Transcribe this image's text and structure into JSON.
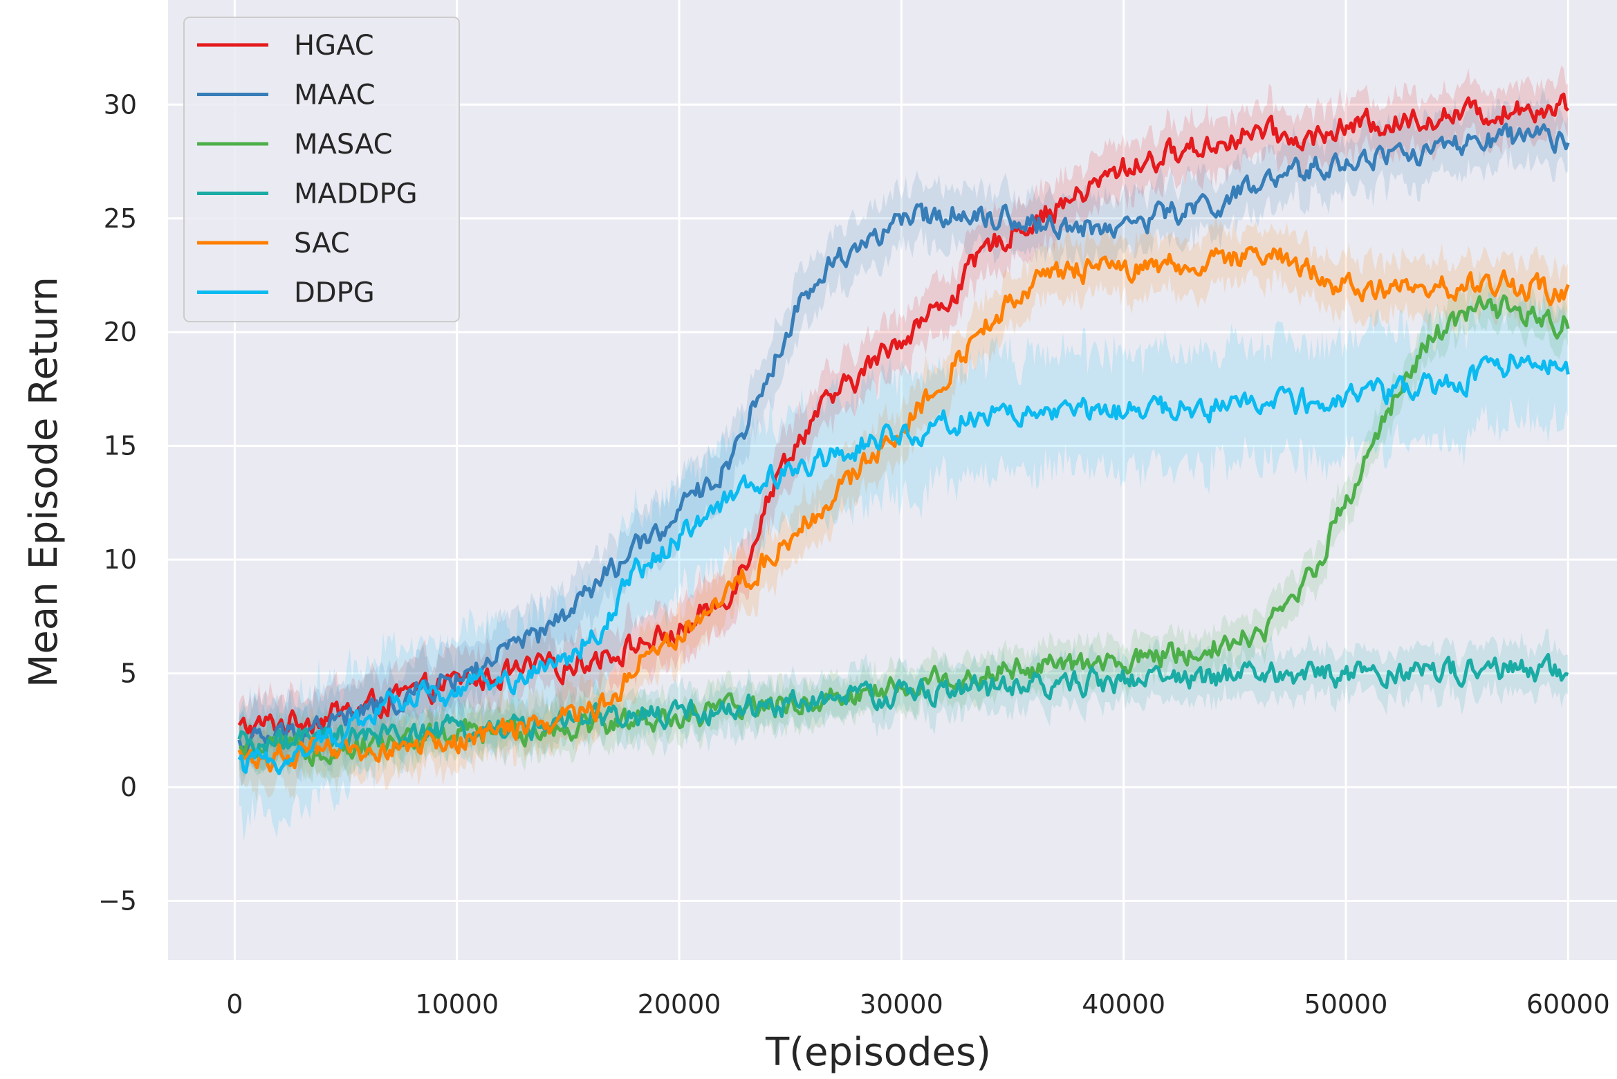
{
  "chart_data": {
    "type": "line",
    "title": "",
    "xlabel": "T(episodes)",
    "ylabel": "Mean Episode Return",
    "xlim": [
      -3000,
      62200
    ],
    "ylim": [
      -7.6,
      34.6
    ],
    "xticks": [
      0,
      10000,
      20000,
      30000,
      40000,
      50000,
      60000
    ],
    "xtick_labels": [
      "0",
      "10000",
      "20000",
      "30000",
      "40000",
      "50000",
      "60000"
    ],
    "yticks": [
      -5,
      0,
      5,
      10,
      15,
      20,
      25,
      30
    ],
    "ytick_labels": [
      "−5",
      "0",
      "5",
      "10",
      "15",
      "20",
      "25",
      "30"
    ],
    "grid": true,
    "background": "#EAEAF2",
    "legend_position": "top-left",
    "series": [
      {
        "name": "HGAC",
        "color": "#E41A1C",
        "x": [
          0,
          5000,
          10000,
          15000,
          18000,
          20000,
          22000,
          23000,
          24000,
          25000,
          26000,
          28000,
          30000,
          32000,
          34000,
          36000,
          38000,
          40000,
          42000,
          44000,
          46000,
          48000,
          50000,
          52000,
          54000,
          56000,
          58000,
          60000
        ],
        "values": [
          2.5,
          3.3,
          4.6,
          5.4,
          6.2,
          6.8,
          8.2,
          10.0,
          12.8,
          14.8,
          16.2,
          18.0,
          19.8,
          21.3,
          23.8,
          25.0,
          26.0,
          27.2,
          27.8,
          28.3,
          28.8,
          28.4,
          29.0,
          29.2,
          29.5,
          29.6,
          29.9,
          30.0
        ],
        "band": 1.2
      },
      {
        "name": "MAAC",
        "color": "#377EB8",
        "x": [
          0,
          5000,
          10000,
          14000,
          17000,
          20000,
          22000,
          23000,
          24000,
          25000,
          26000,
          27000,
          28000,
          30000,
          32000,
          34000,
          36000,
          38000,
          40000,
          42000,
          44000,
          46000,
          48000,
          50000,
          52000,
          54000,
          56000,
          58000,
          60000
        ],
        "values": [
          1.8,
          3.0,
          4.8,
          6.8,
          9.5,
          12.0,
          14.0,
          16.0,
          18.0,
          20.5,
          22.0,
          23.2,
          23.8,
          24.8,
          25.3,
          25.2,
          24.8,
          24.6,
          24.7,
          25.2,
          25.6,
          26.3,
          27.0,
          27.5,
          27.8,
          28.0,
          28.3,
          28.5,
          28.3
        ],
        "band": 1.3
      },
      {
        "name": "MASAC",
        "color": "#4DAF4A",
        "x": [
          0,
          5000,
          10000,
          15000,
          20000,
          25000,
          30000,
          35000,
          40000,
          42000,
          44000,
          46000,
          47000,
          48000,
          49000,
          50000,
          51000,
          52000,
          53000,
          54000,
          55000,
          56000,
          57000,
          58000,
          59000,
          60000
        ],
        "values": [
          1.5,
          1.8,
          2.3,
          2.7,
          3.1,
          3.7,
          4.4,
          5.2,
          5.4,
          5.8,
          6.2,
          6.8,
          7.5,
          8.8,
          10.5,
          12.5,
          14.8,
          16.8,
          18.6,
          19.9,
          20.6,
          20.9,
          21.0,
          20.7,
          20.4,
          20.6
        ],
        "band": 0.9
      },
      {
        "name": "MADDPG",
        "color": "#1AABA5",
        "x": [
          0,
          5000,
          10000,
          15000,
          20000,
          25000,
          30000,
          35000,
          40000,
          45000,
          50000,
          55000,
          60000
        ],
        "values": [
          1.8,
          2.1,
          2.5,
          2.8,
          3.2,
          3.7,
          4.1,
          4.4,
          4.7,
          4.9,
          5.0,
          5.1,
          5.1
        ],
        "band": 1.0
      },
      {
        "name": "SAC",
        "color": "#FF7F00",
        "x": [
          0,
          5000,
          10000,
          15000,
          17000,
          18000,
          20000,
          22000,
          24000,
          26000,
          28000,
          30000,
          32000,
          34000,
          35000,
          36000,
          38000,
          40000,
          42000,
          44000,
          46000,
          47000,
          48000,
          50000,
          52000,
          54000,
          56000,
          58000,
          60000
        ],
        "values": [
          1.3,
          1.5,
          2.0,
          3.0,
          3.8,
          5.5,
          6.8,
          8.5,
          10.0,
          12.0,
          13.8,
          15.8,
          18.2,
          20.5,
          21.5,
          22.2,
          22.7,
          22.8,
          22.9,
          23.0,
          23.3,
          23.5,
          22.8,
          22.0,
          21.8,
          22.0,
          22.1,
          22.0,
          21.9
        ],
        "band": 1.2
      },
      {
        "name": "DDPG",
        "color": "#0ABAF0",
        "x": [
          0,
          3000,
          5000,
          7000,
          10000,
          13000,
          15000,
          17000,
          18000,
          20000,
          22000,
          24000,
          26000,
          28000,
          30000,
          32000,
          34000,
          36000,
          38000,
          40000,
          42000,
          44000,
          46000,
          48000,
          50000,
          52000,
          54000,
          56000,
          57000,
          58000,
          60000
        ],
        "values": [
          0.8,
          1.5,
          2.5,
          3.8,
          4.3,
          4.9,
          5.8,
          7.5,
          9.5,
          11.0,
          12.5,
          13.5,
          14.3,
          15.0,
          15.6,
          16.0,
          16.3,
          16.5,
          16.5,
          16.5,
          16.6,
          16.7,
          16.8,
          16.9,
          17.0,
          17.3,
          17.6,
          18.0,
          18.5,
          19.2,
          18.3
        ],
        "band": 2.5
      }
    ]
  }
}
